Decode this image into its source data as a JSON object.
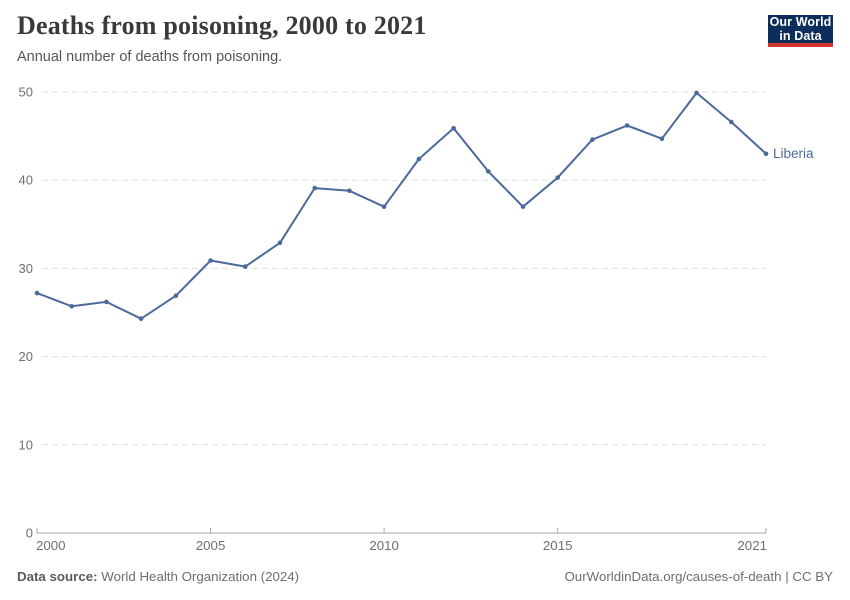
{
  "header": {
    "title": "Deaths from poisoning, 2000 to 2021",
    "subtitle": "Annual number of deaths from poisoning.",
    "logo": {
      "line1": "Our World",
      "line2": "in Data",
      "bg_color": "#0d2e5a",
      "stripe_color": "#d0342f"
    }
  },
  "chart_data": {
    "type": "line",
    "title": "Deaths from poisoning, 2000 to 2021",
    "xlabel": "",
    "ylabel": "",
    "x": [
      2000,
      2001,
      2002,
      2003,
      2004,
      2005,
      2006,
      2007,
      2008,
      2009,
      2010,
      2011,
      2012,
      2013,
      2014,
      2015,
      2016,
      2017,
      2018,
      2019,
      2020,
      2021
    ],
    "series": [
      {
        "name": "Liberia",
        "color": "#4C6A9C",
        "values": [
          27.2,
          25.7,
          26.2,
          24.3,
          26.9,
          30.9,
          30.2,
          32.9,
          39.1,
          38.8,
          37.0,
          42.4,
          45.9,
          41.0,
          37.0,
          40.3,
          44.6,
          46.2,
          44.7,
          49.9,
          46.6,
          43.0
        ]
      }
    ],
    "ylim": [
      0,
      50
    ],
    "yticks": [
      0,
      10,
      20,
      30,
      40,
      50
    ],
    "xticks": [
      2000,
      2005,
      2010,
      2015,
      2021
    ],
    "grid": "horizontal-dashed",
    "grid_color": "#e0e0e0",
    "axis_color": "#a6a6a6",
    "tick_label_color": "#707070",
    "legend_position": "end-of-line"
  },
  "footer": {
    "source_label": "Data source:",
    "source_value": "World Health Organization (2024)",
    "link": "OurWorldinData.org/causes-of-death | CC BY"
  }
}
